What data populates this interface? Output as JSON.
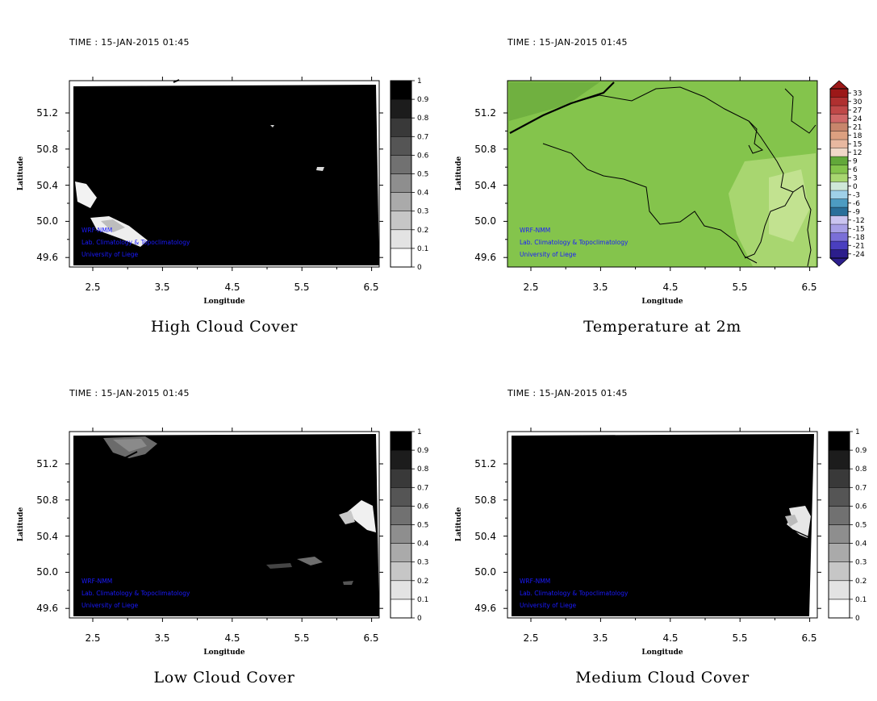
{
  "time_label": "TIME : 15-JAN-2015 01:45",
  "credits": [
    "WRF-NMM",
    "Lab. Climatology & Topoclimatology",
    "University of Liege"
  ],
  "panels": [
    {
      "title": "High Cloud Cover",
      "time": "TIME : 15-JAN-2015 01:45",
      "field": "cloud",
      "chart_data": {
        "type": "heatmap",
        "xlabel": "Longitude",
        "ylabel": "Latitude",
        "xticks": [
          "2.5",
          "3.5",
          "4.5",
          "5.5",
          "6.5"
        ],
        "yticks": [
          "51.2",
          "50.8",
          "50.4",
          "50.0",
          "49.6"
        ],
        "colorbar": [
          "0",
          "0.1",
          "0.2",
          "0.3",
          "0.4",
          "0.5",
          "0.6",
          "0.7",
          "0.8",
          "0.9",
          "1"
        ]
      }
    },
    {
      "title": "Temperature at 2m",
      "time": "TIME : 15-JAN-2015 01:45",
      "field": "temp",
      "chart_data": {
        "type": "heatmap",
        "xlabel": "Longitude",
        "ylabel": "Latitude",
        "xticks": [
          "2.5",
          "3.5",
          "4.5",
          "5.5",
          "6.5"
        ],
        "yticks": [
          "51.2",
          "50.8",
          "50.4",
          "50.0",
          "49.6"
        ],
        "colorbar": [
          "-24",
          "-21",
          "-18",
          "-15",
          "-12",
          "-9",
          "-6",
          "-3",
          "0",
          "3",
          "6",
          "9",
          "12",
          "15",
          "18",
          "21",
          "24",
          "27",
          "30",
          "33"
        ]
      }
    },
    {
      "title": "Low Cloud Cover",
      "time": "TIME : 15-JAN-2015 01:45",
      "field": "cloud",
      "chart_data": {
        "type": "heatmap",
        "xlabel": "Longitude",
        "ylabel": "Latitude",
        "xticks": [
          "2.5",
          "3.5",
          "4.5",
          "5.5",
          "6.5"
        ],
        "yticks": [
          "51.2",
          "50.8",
          "50.4",
          "50.0",
          "49.6"
        ],
        "colorbar": [
          "0",
          "0.1",
          "0.2",
          "0.3",
          "0.4",
          "0.5",
          "0.6",
          "0.7",
          "0.8",
          "0.9",
          "1"
        ]
      }
    },
    {
      "title": "Medium Cloud Cover",
      "time": "TIME : 15-JAN-2015 01:45",
      "field": "cloud",
      "chart_data": {
        "type": "heatmap",
        "xlabel": "Longitude",
        "ylabel": "Latitude",
        "xticks": [
          "2.5",
          "3.5",
          "4.5",
          "5.5",
          "6.5"
        ],
        "yticks": [
          "51.2",
          "50.8",
          "50.4",
          "50.0",
          "49.6"
        ],
        "colorbar": [
          "0",
          "0.1",
          "0.2",
          "0.3",
          "0.4",
          "0.5",
          "0.6",
          "0.7",
          "0.8",
          "0.9",
          "1"
        ]
      }
    }
  ]
}
